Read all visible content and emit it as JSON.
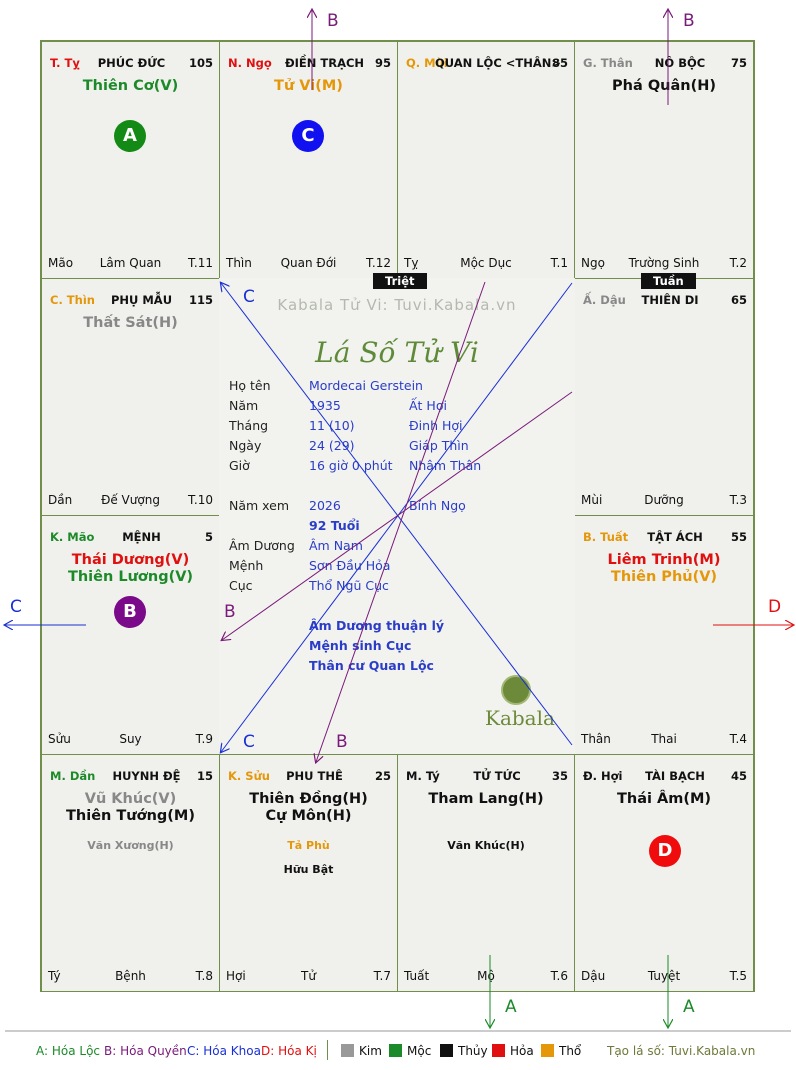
{
  "palaces": {
    "ty_top": {
      "can": "T. Tỵ",
      "name": "PHÚC ĐỨC",
      "num": "105",
      "stars": [
        "Thiên Cơ(V)"
      ],
      "minor": [],
      "f_l": "Mão",
      "f_m": "Lâm Quan",
      "f_r": "T.11",
      "circle": "A"
    },
    "ngo": {
      "can": "N. Ngọ",
      "name": "ĐIỀN TRẠCH",
      "num": "95",
      "stars": [
        "Tử Vi(M)"
      ],
      "minor": [],
      "f_l": "Thìn",
      "f_m": "Quan Đới",
      "f_r": "T.12",
      "circle": "C"
    },
    "mui": {
      "can": "Q. Mùi",
      "name": "QUAN LỘC <THÂN>",
      "num": "85",
      "stars": [],
      "minor": [],
      "f_l": "Tỵ",
      "f_m": "Mộc Dục",
      "f_r": "T.1"
    },
    "than_top": {
      "can": "G. Thân",
      "name": "NÔ BỘC",
      "num": "75",
      "stars": [
        "Phá Quân(H)"
      ],
      "minor": [],
      "f_l": "Ngọ",
      "f_m": "Trường Sinh",
      "f_r": "T.2"
    },
    "thin": {
      "can": "C. Thìn",
      "name": "PHỤ MẪU",
      "num": "115",
      "stars": [
        "Thất Sát(H)"
      ],
      "minor": [],
      "f_l": "Dần",
      "f_m": "Đế Vượng",
      "f_r": "T.10"
    },
    "dau": {
      "can": "Ấ. Dậu",
      "name": "THIÊN DI",
      "num": "65",
      "stars": [],
      "minor": [],
      "f_l": "Mùi",
      "f_m": "Dưỡng",
      "f_r": "T.3"
    },
    "mao": {
      "can": "K. Mão",
      "name": "MỆNH",
      "num": "5",
      "stars": [
        "Thái Dương(V)",
        "Thiên Lương(V)"
      ],
      "minor": [],
      "f_l": "Sửu",
      "f_m": "Suy",
      "f_r": "T.9",
      "circle": "B"
    },
    "tuat": {
      "can": "B. Tuất",
      "name": "TẬT ÁCH",
      "num": "55",
      "stars": [
        "Liêm Trinh(M)",
        "Thiên Phủ(V)"
      ],
      "minor": [],
      "f_l": "Thân",
      "f_m": "Thai",
      "f_r": "T.4"
    },
    "dan": {
      "can": "M. Dần",
      "name": "HUYNH ĐỆ",
      "num": "15",
      "stars": [
        "Vũ Khúc(V)",
        "Thiên Tướng(M)"
      ],
      "minor": [
        "Văn Xương(H)"
      ],
      "f_l": "Tý",
      "f_m": "Bệnh",
      "f_r": "T.8"
    },
    "suu": {
      "can": "K. Sửu",
      "name": "PHU THÊ",
      "num": "25",
      "stars": [
        "Thiên Đồng(H)",
        "Cự Môn(H)"
      ],
      "minor": [
        "Tả Phù",
        "Hữu Bật"
      ],
      "f_l": "Hợi",
      "f_m": "Tử",
      "f_r": "T.7"
    },
    "ty_bottom": {
      "can": "M. Tý",
      "name": "TỬ TỨC",
      "num": "35",
      "stars": [
        "Tham Lang(H)"
      ],
      "minor": [
        "Văn Khúc(H)"
      ],
      "f_l": "Tuất",
      "f_m": "Mộ",
      "f_r": "T.6"
    },
    "hoi": {
      "can": "Đ. Hợi",
      "name": "TÀI BẠCH",
      "num": "45",
      "stars": [
        "Thái Âm(M)"
      ],
      "minor": [],
      "f_l": "Dậu",
      "f_m": "Tuyệt",
      "f_r": "T.5",
      "circle": "D"
    }
  },
  "tags": {
    "triet": "Triệt",
    "tuan": "Tuần"
  },
  "center": {
    "watermark": "Kabala Tử Vi: Tuvi.Kabala.vn",
    "title": "Lá Số Tử Vi",
    "ho_ten_k": "Họ tên",
    "ho_ten_v": "Mordecai Gerstein",
    "nam_k": "Năm",
    "nam_v": "1935",
    "nam_v2": "Ất Hợi",
    "thang_k": "Tháng",
    "thang_v": "11 (10)",
    "thang_v2": "Đinh Hợi",
    "ngay_k": "Ngày",
    "ngay_v": "24 (29)",
    "ngay_v2": "Giáp Thìn",
    "gio_k": "Giờ",
    "gio_v": "16 giờ 0 phút",
    "gio_v2": "Nhâm Thân",
    "namxem_k": "Năm xem",
    "namxem_v": "2026",
    "namxem_v2": "Bính Ngọ",
    "tuoi": "92 Tuổi",
    "amduong_k": "Âm Dương",
    "amduong_v": "Âm Nam",
    "menh_k": "Mệnh",
    "menh_v": "Sơn Đầu Hỏa",
    "cuc_k": "Cục",
    "cuc_v": "Thổ Ngũ Cục",
    "note1": "Âm Dương thuận lý",
    "note2": "Mệnh sinh Cục",
    "note3": "Thân cư Quan Lộc",
    "logo": "Kabala"
  },
  "arrow_labels": {
    "b1": "B",
    "b2": "B",
    "c_left": "C",
    "d_right": "D",
    "a1": "A",
    "a2": "A",
    "b_inner": "B",
    "c_inner": "C",
    "c_inner2": "C",
    "b_inner2": "B"
  },
  "legend": {
    "a": "A: Hóa Lộc",
    "b": "B: Hóa Quyền",
    "c": "C: Hóa Khoa",
    "d": "D: Hóa Kị",
    "kim": "Kim",
    "moc": "Mộc",
    "thuy": "Thủy",
    "hoa": "Hỏa",
    "tho": "Thổ",
    "site": "Tạo lá số: Tuvi.Kabala.vn"
  },
  "colors": {
    "kim": "#999999",
    "moc": "#1d8a2a",
    "thuy": "#111111",
    "hoa": "#e01010",
    "tho": "#e5970a",
    "line_blue": "#1a2fd6",
    "line_purple": "#7a1a7a",
    "border": "#6f8f4a"
  }
}
